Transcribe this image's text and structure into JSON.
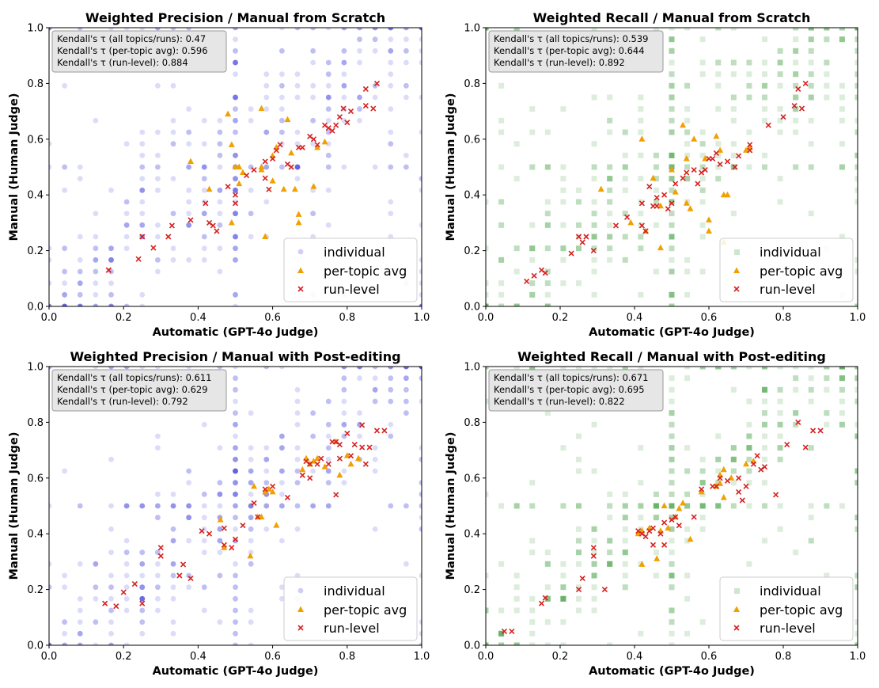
{
  "chart_data": [
    {
      "type": "scatter",
      "title": "Weighted Precision / Manual from Scratch",
      "xlabel": "Automatic (GPT-4o Judge)",
      "ylabel": "Manual (Human Judge)",
      "xlim": [
        0,
        1
      ],
      "ylim": [
        0,
        1
      ],
      "xticks": [
        "0.0",
        "0.2",
        "0.4",
        "0.6",
        "0.8",
        "1.0"
      ],
      "yticks": [
        "0.0",
        "0.2",
        "0.4",
        "0.6",
        "0.8",
        "1.0"
      ],
      "individual_color": "#3b3bdd",
      "individual_marker": "circle",
      "stats": [
        "Kendall's τ (all topics/runs): 0.47",
        "Kendall's τ (per-topic avg): 0.596",
        "Kendall's τ (run-level): 0.884"
      ],
      "legend": [
        "individual",
        "per-topic avg",
        "run-level"
      ],
      "legend_loc": "lower right",
      "per_topic_avg": [
        [
          0.38,
          0.52
        ],
        [
          0.48,
          0.69
        ],
        [
          0.49,
          0.58
        ],
        [
          0.5,
          0.5
        ],
        [
          0.51,
          0.44
        ],
        [
          0.51,
          0.5
        ],
        [
          0.52,
          0.48
        ],
        [
          0.57,
          0.49
        ],
        [
          0.57,
          0.5
        ],
        [
          0.57,
          0.71
        ],
        [
          0.58,
          0.25
        ],
        [
          0.6,
          0.54
        ],
        [
          0.61,
          0.57
        ],
        [
          0.63,
          0.42
        ],
        [
          0.64,
          0.67
        ],
        [
          0.65,
          0.55
        ],
        [
          0.66,
          0.42
        ],
        [
          0.67,
          0.3
        ],
        [
          0.67,
          0.33
        ],
        [
          0.71,
          0.43
        ],
        [
          0.72,
          0.57
        ],
        [
          0.74,
          0.59
        ],
        [
          0.49,
          0.3
        ],
        [
          0.43,
          0.42
        ],
        [
          0.6,
          0.45
        ]
      ],
      "run_level": [
        [
          0.16,
          0.13
        ],
        [
          0.16,
          0.13
        ],
        [
          0.24,
          0.17
        ],
        [
          0.25,
          0.25
        ],
        [
          0.28,
          0.21
        ],
        [
          0.32,
          0.25
        ],
        [
          0.33,
          0.29
        ],
        [
          0.38,
          0.31
        ],
        [
          0.42,
          0.37
        ],
        [
          0.43,
          0.3
        ],
        [
          0.44,
          0.29
        ],
        [
          0.45,
          0.27
        ],
        [
          0.48,
          0.43
        ],
        [
          0.5,
          0.37
        ],
        [
          0.5,
          0.4
        ],
        [
          0.53,
          0.47
        ],
        [
          0.55,
          0.49
        ],
        [
          0.58,
          0.52
        ],
        [
          0.58,
          0.46
        ],
        [
          0.59,
          0.42
        ],
        [
          0.6,
          0.53
        ],
        [
          0.61,
          0.56
        ],
        [
          0.62,
          0.58
        ],
        [
          0.64,
          0.51
        ],
        [
          0.65,
          0.5
        ],
        [
          0.67,
          0.57
        ],
        [
          0.68,
          0.57
        ],
        [
          0.7,
          0.61
        ],
        [
          0.71,
          0.6
        ],
        [
          0.72,
          0.58
        ],
        [
          0.74,
          0.65
        ],
        [
          0.75,
          0.64
        ],
        [
          0.76,
          0.63
        ],
        [
          0.77,
          0.65
        ],
        [
          0.78,
          0.68
        ],
        [
          0.79,
          0.71
        ],
        [
          0.81,
          0.7
        ],
        [
          0.85,
          0.72
        ],
        [
          0.85,
          0.78
        ],
        [
          0.87,
          0.71
        ],
        [
          0.88,
          0.8
        ],
        [
          0.8,
          0.66
        ]
      ],
      "individual_count": 460
    },
    {
      "type": "scatter",
      "title": "Weighted Recall / Manual from Scratch",
      "xlabel": "Automatic (GPT-4o Judge)",
      "ylabel": "Manual (Human Judge)",
      "xlim": [
        0,
        1
      ],
      "ylim": [
        0,
        1
      ],
      "xticks": [
        "0.0",
        "0.2",
        "0.4",
        "0.6",
        "0.8",
        "1.0"
      ],
      "yticks": [
        "0.0",
        "0.2",
        "0.4",
        "0.6",
        "0.8",
        "1.0"
      ],
      "individual_color": "#3d9a3d",
      "individual_marker": "square",
      "stats": [
        "Kendall's τ (all topics/runs): 0.539",
        "Kendall's τ (per-topic avg): 0.644",
        "Kendall's τ (run-level): 0.892"
      ],
      "legend": [
        "individual",
        "per-topic avg",
        "run-level"
      ],
      "legend_loc": "lower right",
      "per_topic_avg": [
        [
          0.31,
          0.42
        ],
        [
          0.39,
          0.3
        ],
        [
          0.42,
          0.6
        ],
        [
          0.45,
          0.46
        ],
        [
          0.47,
          0.36
        ],
        [
          0.5,
          0.49
        ],
        [
          0.51,
          0.41
        ],
        [
          0.53,
          0.65
        ],
        [
          0.54,
          0.37
        ],
        [
          0.54,
          0.53
        ],
        [
          0.55,
          0.35
        ],
        [
          0.56,
          0.6
        ],
        [
          0.59,
          0.53
        ],
        [
          0.6,
          0.31
        ],
        [
          0.6,
          0.27
        ],
        [
          0.62,
          0.61
        ],
        [
          0.63,
          0.56
        ],
        [
          0.64,
          0.4
        ],
        [
          0.64,
          0.23
        ],
        [
          0.65,
          0.4
        ],
        [
          0.43,
          0.27
        ],
        [
          0.47,
          0.21
        ],
        [
          0.7,
          0.56
        ],
        [
          0.71,
          0.57
        ]
      ],
      "run_level": [
        [
          0.11,
          0.09
        ],
        [
          0.13,
          0.11
        ],
        [
          0.15,
          0.13
        ],
        [
          0.16,
          0.12
        ],
        [
          0.23,
          0.19
        ],
        [
          0.25,
          0.25
        ],
        [
          0.26,
          0.23
        ],
        [
          0.27,
          0.25
        ],
        [
          0.29,
          0.2
        ],
        [
          0.35,
          0.29
        ],
        [
          0.38,
          0.32
        ],
        [
          0.42,
          0.37
        ],
        [
          0.42,
          0.29
        ],
        [
          0.43,
          0.27
        ],
        [
          0.44,
          0.43
        ],
        [
          0.45,
          0.36
        ],
        [
          0.46,
          0.39
        ],
        [
          0.46,
          0.36
        ],
        [
          0.48,
          0.4
        ],
        [
          0.49,
          0.35
        ],
        [
          0.5,
          0.37
        ],
        [
          0.51,
          0.44
        ],
        [
          0.53,
          0.46
        ],
        [
          0.54,
          0.48
        ],
        [
          0.56,
          0.49
        ],
        [
          0.57,
          0.44
        ],
        [
          0.58,
          0.48
        ],
        [
          0.59,
          0.49
        ],
        [
          0.6,
          0.53
        ],
        [
          0.61,
          0.53
        ],
        [
          0.62,
          0.55
        ],
        [
          0.63,
          0.51
        ],
        [
          0.65,
          0.52
        ],
        [
          0.67,
          0.5
        ],
        [
          0.68,
          0.54
        ],
        [
          0.71,
          0.56
        ],
        [
          0.71,
          0.58
        ],
        [
          0.76,
          0.65
        ],
        [
          0.8,
          0.68
        ],
        [
          0.83,
          0.72
        ],
        [
          0.84,
          0.78
        ],
        [
          0.85,
          0.71
        ],
        [
          0.86,
          0.8
        ]
      ],
      "individual_count": 460
    },
    {
      "type": "scatter",
      "title": "Weighted Precision / Manual with Post-editing",
      "xlabel": "Automatic (GPT-4o Judge)",
      "ylabel": "Manual (Human Judge)",
      "xlim": [
        0,
        1
      ],
      "ylim": [
        0,
        1
      ],
      "xticks": [
        "0.0",
        "0.2",
        "0.4",
        "0.6",
        "0.8",
        "1.0"
      ],
      "yticks": [
        "0.0",
        "0.2",
        "0.4",
        "0.6",
        "0.8",
        "1.0"
      ],
      "individual_color": "#3b3bdd",
      "individual_marker": "circle",
      "stats": [
        "Kendall's τ (all topics/runs): 0.611",
        "Kendall's τ (per-topic avg): 0.629",
        "Kendall's τ (run-level): 0.792"
      ],
      "legend": [
        "individual",
        "per-topic avg",
        "run-level"
      ],
      "legend_loc": "lower right",
      "per_topic_avg": [
        [
          0.46,
          0.45
        ],
        [
          0.47,
          0.35
        ],
        [
          0.54,
          0.32
        ],
        [
          0.55,
          0.57
        ],
        [
          0.56,
          0.46
        ],
        [
          0.57,
          0.46
        ],
        [
          0.58,
          0.55
        ],
        [
          0.59,
          0.56
        ],
        [
          0.6,
          0.55
        ],
        [
          0.61,
          0.43
        ],
        [
          0.68,
          0.63
        ],
        [
          0.69,
          0.67
        ],
        [
          0.7,
          0.65
        ],
        [
          0.71,
          0.66
        ],
        [
          0.72,
          0.67
        ],
        [
          0.74,
          0.64
        ],
        [
          0.77,
          0.73
        ],
        [
          0.78,
          0.61
        ],
        [
          0.8,
          0.68
        ],
        [
          0.81,
          0.65
        ],
        [
          0.83,
          0.67
        ]
      ],
      "run_level": [
        [
          0.15,
          0.15
        ],
        [
          0.18,
          0.14
        ],
        [
          0.2,
          0.19
        ],
        [
          0.23,
          0.22
        ],
        [
          0.25,
          0.15
        ],
        [
          0.3,
          0.35
        ],
        [
          0.3,
          0.32
        ],
        [
          0.35,
          0.25
        ],
        [
          0.36,
          0.29
        ],
        [
          0.38,
          0.24
        ],
        [
          0.41,
          0.41
        ],
        [
          0.43,
          0.4
        ],
        [
          0.47,
          0.42
        ],
        [
          0.47,
          0.36
        ],
        [
          0.49,
          0.35
        ],
        [
          0.5,
          0.38
        ],
        [
          0.52,
          0.43
        ],
        [
          0.55,
          0.51
        ],
        [
          0.56,
          0.46
        ],
        [
          0.58,
          0.56
        ],
        [
          0.6,
          0.57
        ],
        [
          0.64,
          0.53
        ],
        [
          0.68,
          0.61
        ],
        [
          0.69,
          0.66
        ],
        [
          0.7,
          0.65
        ],
        [
          0.72,
          0.65
        ],
        [
          0.73,
          0.67
        ],
        [
          0.75,
          0.65
        ],
        [
          0.76,
          0.73
        ],
        [
          0.77,
          0.73
        ],
        [
          0.78,
          0.72
        ],
        [
          0.78,
          0.67
        ],
        [
          0.8,
          0.76
        ],
        [
          0.81,
          0.68
        ],
        [
          0.82,
          0.72
        ],
        [
          0.84,
          0.79
        ],
        [
          0.84,
          0.71
        ],
        [
          0.85,
          0.65
        ],
        [
          0.86,
          0.71
        ],
        [
          0.88,
          0.77
        ],
        [
          0.9,
          0.77
        ],
        [
          0.7,
          0.6
        ],
        [
          0.77,
          0.54
        ]
      ],
      "individual_count": 460
    },
    {
      "type": "scatter",
      "title": "Weighted Recall / Manual with Post-editing",
      "xlabel": "Automatic (GPT-4o Judge)",
      "ylabel": "Manual (Human Judge)",
      "xlim": [
        0,
        1
      ],
      "ylim": [
        0,
        1
      ],
      "xticks": [
        "0.0",
        "0.2",
        "0.4",
        "0.6",
        "0.8",
        "1.0"
      ],
      "yticks": [
        "0.0",
        "0.2",
        "0.4",
        "0.6",
        "0.8",
        "1.0"
      ],
      "individual_color": "#3d9a3d",
      "individual_marker": "square",
      "stats": [
        "Kendall's τ (all topics/runs): 0.671",
        "Kendall's τ (per-topic avg): 0.695",
        "Kendall's τ (run-level): 0.822"
      ],
      "legend": [
        "individual",
        "per-topic avg",
        "run-level"
      ],
      "legend_loc": "lower right",
      "per_topic_avg": [
        [
          0.41,
          0.4
        ],
        [
          0.42,
          0.41
        ],
        [
          0.42,
          0.29
        ],
        [
          0.44,
          0.42
        ],
        [
          0.46,
          0.31
        ],
        [
          0.47,
          0.41
        ],
        [
          0.48,
          0.5
        ],
        [
          0.49,
          0.42
        ],
        [
          0.51,
          0.46
        ],
        [
          0.52,
          0.49
        ],
        [
          0.53,
          0.51
        ],
        [
          0.55,
          0.38
        ],
        [
          0.58,
          0.55
        ],
        [
          0.62,
          0.57
        ],
        [
          0.63,
          0.58
        ],
        [
          0.63,
          0.61
        ],
        [
          0.64,
          0.63
        ],
        [
          0.64,
          0.53
        ],
        [
          0.66,
          0.6
        ],
        [
          0.7,
          0.65
        ],
        [
          0.72,
          0.66
        ]
      ],
      "run_level": [
        [
          0.05,
          0.05
        ],
        [
          0.07,
          0.05
        ],
        [
          0.15,
          0.15
        ],
        [
          0.16,
          0.17
        ],
        [
          0.25,
          0.2
        ],
        [
          0.26,
          0.24
        ],
        [
          0.29,
          0.35
        ],
        [
          0.29,
          0.32
        ],
        [
          0.32,
          0.2
        ],
        [
          0.41,
          0.41
        ],
        [
          0.42,
          0.4
        ],
        [
          0.43,
          0.39
        ],
        [
          0.44,
          0.41
        ],
        [
          0.45,
          0.42
        ],
        [
          0.45,
          0.36
        ],
        [
          0.47,
          0.4
        ],
        [
          0.48,
          0.44
        ],
        [
          0.48,
          0.36
        ],
        [
          0.5,
          0.45
        ],
        [
          0.51,
          0.46
        ],
        [
          0.52,
          0.43
        ],
        [
          0.56,
          0.46
        ],
        [
          0.58,
          0.56
        ],
        [
          0.61,
          0.57
        ],
        [
          0.62,
          0.57
        ],
        [
          0.63,
          0.6
        ],
        [
          0.65,
          0.59
        ],
        [
          0.68,
          0.6
        ],
        [
          0.68,
          0.55
        ],
        [
          0.69,
          0.52
        ],
        [
          0.7,
          0.57
        ],
        [
          0.72,
          0.65
        ],
        [
          0.73,
          0.68
        ],
        [
          0.74,
          0.63
        ],
        [
          0.75,
          0.64
        ],
        [
          0.78,
          0.54
        ],
        [
          0.81,
          0.72
        ],
        [
          0.84,
          0.8
        ],
        [
          0.86,
          0.71
        ],
        [
          0.88,
          0.77
        ],
        [
          0.9,
          0.77
        ]
      ],
      "individual_count": 460
    }
  ]
}
